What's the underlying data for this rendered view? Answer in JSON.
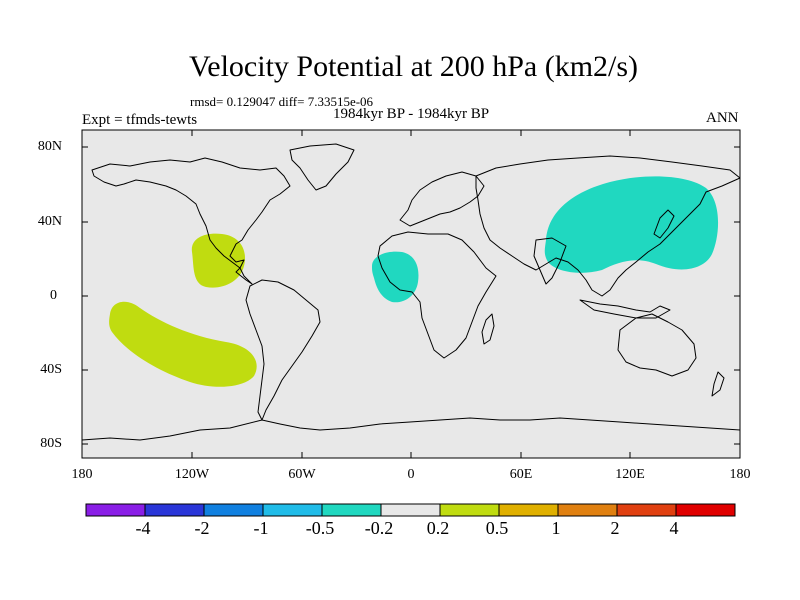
{
  "title": "Velocity Potential at 200 hPa (km2/s)",
  "stats": "rmsd= 0.129047 diff= 7.33515e-06",
  "period": "1984kyr BP - 1984kyr BP",
  "experiment": "Expt = tfmds-tewts",
  "season": "ANN",
  "lat_ticks": [
    "80N",
    "40N",
    "0",
    "40S",
    "80S"
  ],
  "lon_ticks": [
    "180",
    "120W",
    "60W",
    "0",
    "60E",
    "120E",
    "180"
  ],
  "colorbar": {
    "colors": [
      "#8a1ee6",
      "#2a36d8",
      "#1080e0",
      "#20bce8",
      "#20d8c0",
      "#e8e8e8",
      "#c0dc10",
      "#e0b000",
      "#e08010",
      "#e04010",
      "#e00000"
    ],
    "labels": [
      "-4",
      "-2",
      "-1",
      "-0.5",
      "-0.2",
      "0.2",
      "0.5",
      "1",
      "2",
      "4"
    ]
  },
  "colors": {
    "ocean_bg": "#e8e8e8",
    "positive_anomaly": "#c0dc10",
    "negative_anomaly": "#20d8c0",
    "coastline": "#000000"
  },
  "anomaly_regions": [
    {
      "name": "Eastern Pacific / Mexico",
      "sign": "positive"
    },
    {
      "name": "South Pacific",
      "sign": "positive"
    },
    {
      "name": "West Africa",
      "sign": "negative"
    },
    {
      "name": "East Asia / West Pacific",
      "sign": "negative"
    }
  ]
}
